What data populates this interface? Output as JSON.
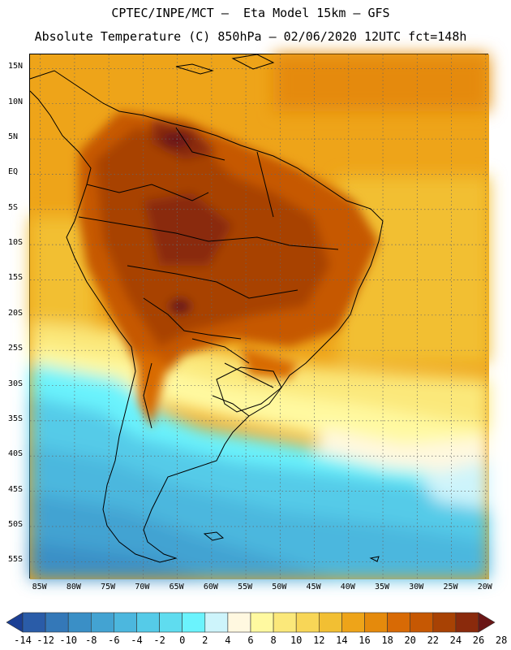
{
  "header": {
    "line1": "CPTEC/INPE/MCT –  Eta Model 15km – GFS",
    "line2": "Absolute Temperature (C) 850hPa – 02/06/2020 12UTC fct=148h"
  },
  "map": {
    "lat_labels": [
      "15N",
      "10N",
      "5N",
      "EQ",
      "5S",
      "10S",
      "15S",
      "20S",
      "25S",
      "30S",
      "35S",
      "40S",
      "45S",
      "50S",
      "55S"
    ],
    "lon_labels": [
      "85W",
      "80W",
      "75W",
      "70W",
      "65W",
      "60W",
      "55W",
      "50W",
      "45W",
      "40W",
      "35W",
      "30W",
      "25W",
      "20W"
    ],
    "lat_range": [
      -57.5,
      17
    ],
    "lon_range": [
      -86.5,
      -19.5
    ],
    "grid": "dotted"
  },
  "colorbar": {
    "ticks": [
      "-14",
      "-12",
      "-10",
      "-8",
      "-6",
      "-4",
      "-2",
      "0",
      "2",
      "4",
      "6",
      "8",
      "10",
      "12",
      "14",
      "16",
      "18",
      "20",
      "22",
      "24",
      "26",
      "28"
    ],
    "colors": [
      "#1b3f94",
      "#2a5ca8",
      "#3478b8",
      "#3a8fc6",
      "#43a3d2",
      "#4cb7de",
      "#55cbe8",
      "#5fdcef",
      "#6bf3fd",
      "#cdf4fb",
      "#fff8e0",
      "#fff9a0",
      "#fbe87a",
      "#f8d657",
      "#f2bf33",
      "#eea419",
      "#e58a0c",
      "#d86a05",
      "#c65803",
      "#a84204",
      "#8a2a0c",
      "#6a1616"
    ]
  }
}
